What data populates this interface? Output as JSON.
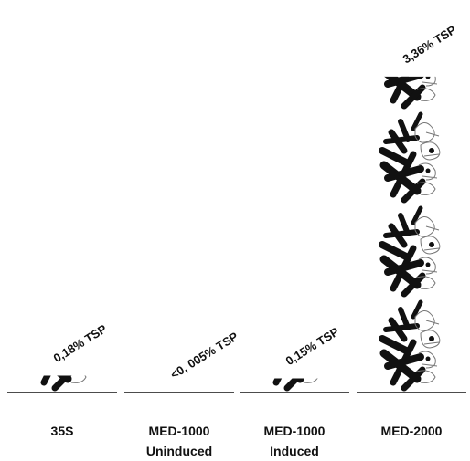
{
  "chart_data": {
    "type": "pictogram",
    "categories": [
      "35S",
      "MED-1000 Uninduced",
      "MED-1000 Induced",
      "MED-2000"
    ],
    "values": [
      0.18,
      0.005,
      0.15,
      3.36
    ],
    "value_labels": [
      "0,18% TSP",
      "<0, 005% TSP",
      "0,15% TSP",
      "3,36% TSP"
    ],
    "color": "#111111"
  }
}
